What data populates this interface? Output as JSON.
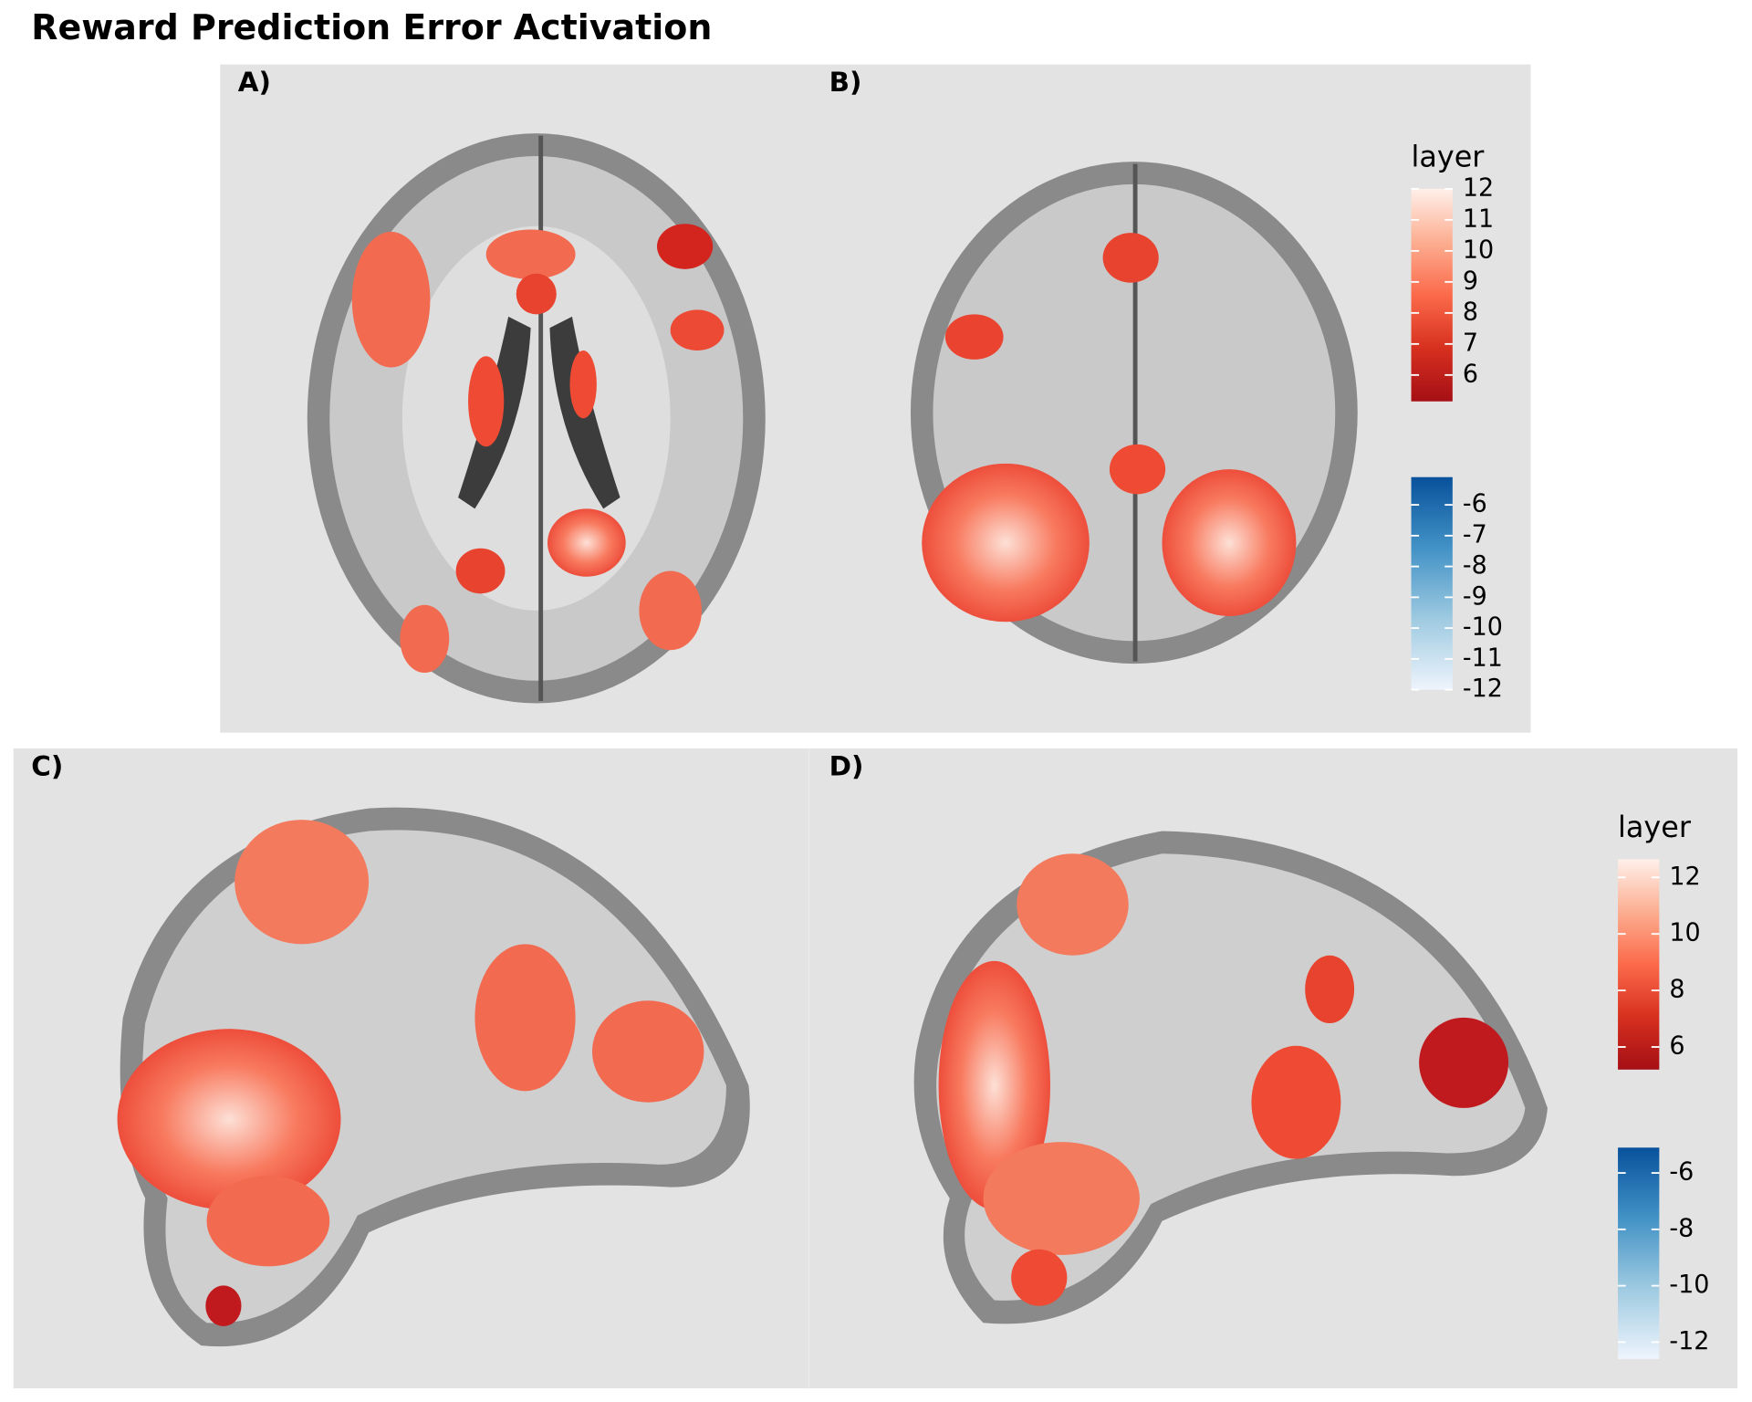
{
  "title": "Reward Prediction Error Activation",
  "panels": [
    {
      "label": "A)"
    },
    {
      "label": "B)"
    },
    {
      "label": "C)"
    },
    {
      "label": "D)"
    }
  ],
  "legends": [
    {
      "title": "layer",
      "positive": {
        "limits": [
          5.15,
          12
        ],
        "ticks": [
          6,
          7,
          8,
          9,
          10,
          11,
          12
        ],
        "colors": [
          "#a50f15",
          "#d7301f",
          "#fb6a4a",
          "#fcae91",
          "#fff0ea"
        ]
      },
      "negative": {
        "limits": [
          -12,
          -5.1
        ],
        "ticks": [
          -6,
          -7,
          -8,
          -9,
          -10,
          -11,
          -12
        ],
        "colors": [
          "#eef4fc",
          "#9ecae1",
          "#4292c6",
          "#08519c"
        ]
      }
    },
    {
      "title": "layer",
      "positive": {
        "limits": [
          5.2,
          12.64
        ],
        "ticks": [
          6,
          8,
          10,
          12
        ],
        "colors": [
          "#a50f15",
          "#d7301f",
          "#fb6a4a",
          "#fcae91",
          "#fff0ea"
        ]
      },
      "negative": {
        "limits": [
          -12.6,
          -5.1
        ],
        "ticks": [
          -6,
          -8,
          -10,
          -12
        ],
        "colors": [
          "#eef4fc",
          "#9ecae1",
          "#4292c6",
          "#08519c"
        ]
      }
    }
  ]
}
